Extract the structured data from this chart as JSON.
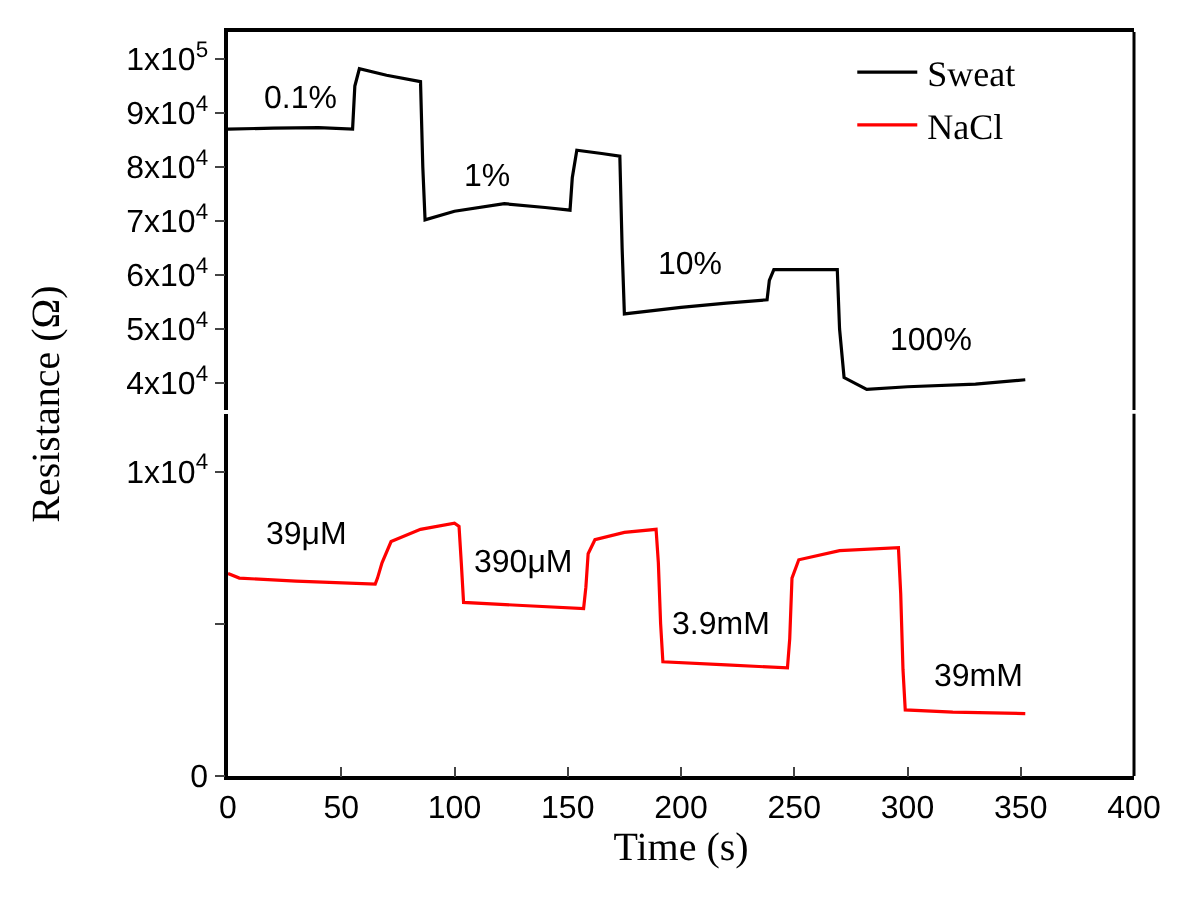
{
  "chart_data": [
    {
      "type": "line",
      "ylabel": "Resistance (Ω)",
      "legend": "top right",
      "tick_labels": "y",
      "xlim": [
        0,
        400
      ],
      "ylim": [
        35000,
        105000
      ],
      "yticks": [
        {
          "value": 40000,
          "label": "4x10$^{4}$"
        },
        {
          "value": 50000,
          "label": "5x10$^{4}$"
        },
        {
          "value": 60000,
          "label": "6x10$^{4}$"
        },
        {
          "value": 70000,
          "label": "7x10$^{4}$"
        },
        {
          "value": 80000,
          "label": "8x10$^{4}$"
        },
        {
          "value": 90000,
          "label": "9x10$^{4}$"
        },
        {
          "value": 100000,
          "label": "1x10$^{5}$"
        }
      ],
      "series": [
        {
          "name": "Sweat",
          "color": "#000000",
          "x": [
            0,
            20,
            40,
            55,
            56,
            58,
            70,
            85,
            86,
            87,
            100,
            122,
            140,
            151,
            152,
            154,
            165,
            173,
            174,
            175,
            200,
            220,
            238,
            239,
            241,
            255,
            269,
            270,
            272,
            282,
            300,
            330,
            352
          ],
          "values": [
            87000,
            87200,
            87300,
            87000,
            95000,
            98200,
            97000,
            95800,
            80000,
            70200,
            71800,
            73200,
            72500,
            72000,
            78000,
            83100,
            82500,
            82000,
            65000,
            52800,
            54000,
            54800,
            55400,
            59000,
            61000,
            61000,
            61000,
            50000,
            41000,
            38800,
            39300,
            39800,
            40600
          ]
        }
      ],
      "annotations": [
        "0.1%",
        "1%",
        "10%",
        "100%"
      ]
    },
    {
      "type": "line",
      "xlabel": "Time (s)",
      "xlim": [
        0,
        400
      ],
      "ylim": [
        0,
        11900
      ],
      "xticks": [
        0,
        50,
        100,
        150,
        200,
        250,
        300,
        350,
        400
      ],
      "yticks": [
        0,
        {
          "value": 5000,
          "label": null
        },
        {
          "value": 10000,
          "label": "1x10$^{4}$"
        }
      ],
      "series": [
        {
          "name": "NaCl",
          "color": "#ff0000",
          "x": [
            0,
            5,
            30,
            65,
            66,
            68,
            72,
            85,
            100,
            102,
            103,
            104,
            130,
            157,
            158,
            159,
            162,
            175,
            189,
            190,
            191,
            192,
            220,
            247,
            248,
            249,
            252,
            270,
            296,
            297,
            298,
            299,
            320,
            352
          ],
          "values": [
            6650,
            6500,
            6400,
            6300,
            6500,
            7000,
            7700,
            8100,
            8300,
            8200,
            7000,
            5700,
            5600,
            5500,
            6200,
            7300,
            7760,
            8000,
            8100,
            7000,
            5000,
            3750,
            3650,
            3550,
            4500,
            6500,
            7100,
            7400,
            7500,
            6000,
            3500,
            2170,
            2100,
            2050
          ]
        }
      ],
      "annotations": [
        "39μM",
        "390μM",
        "3.9mM",
        "39mM"
      ]
    }
  ]
}
